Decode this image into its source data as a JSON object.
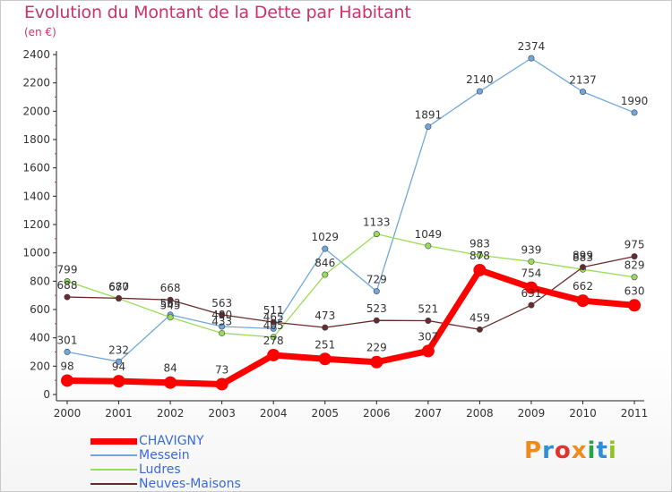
{
  "header": {
    "title": "Evolution du Montant de la Dette par Habitant",
    "unit": "(en €)"
  },
  "logo": {
    "text": "Proxiti",
    "colors": [
      "#f08a1c",
      "#2e8fd8",
      "#e0342b",
      "#2aa34a",
      "#8fc31f"
    ]
  },
  "chart_data": {
    "type": "line",
    "title": "Evolution du Montant de la Dette par Habitant",
    "subtitle": "(en €)",
    "xlabel": "",
    "ylabel": "",
    "x": [
      "2000",
      "2001",
      "2002",
      "2003",
      "2004",
      "2005",
      "2006",
      "2007",
      "2008",
      "2009",
      "2010",
      "2011"
    ],
    "ylim": [
      0,
      2400
    ],
    "yticks": [
      0,
      200,
      400,
      600,
      800,
      1000,
      1200,
      1400,
      1600,
      1800,
      2000,
      2200,
      2400
    ],
    "grid": false,
    "legend_position": "bottom-left",
    "series": [
      {
        "name": "CHAVIGNY",
        "color": "#ff0000",
        "values": [
          98,
          94,
          84,
          73,
          278,
          251,
          229,
          307,
          878,
          754,
          662,
          630
        ]
      },
      {
        "name": "Messein",
        "color": "#6fa8dc",
        "values": [
          301,
          232,
          563,
          480,
          465,
          1029,
          729,
          1891,
          2140,
          2374,
          2137,
          1990
        ]
      },
      {
        "name": "Ludres",
        "color": "#99dd55",
        "values": [
          799,
          677,
          545,
          433,
          405,
          846,
          1133,
          1049,
          983,
          939,
          883,
          829
        ]
      },
      {
        "name": "Neuves-Maisons",
        "color": "#6b2a2a",
        "values": [
          688,
          680,
          668,
          563,
          511,
          473,
          523,
          521,
          459,
          631,
          899,
          975
        ]
      }
    ]
  }
}
